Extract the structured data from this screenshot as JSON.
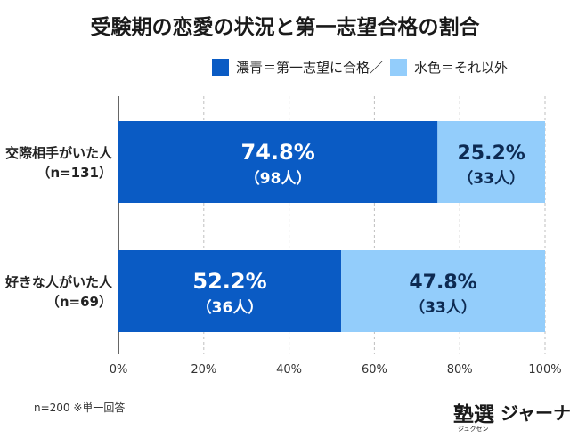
{
  "chart_data": {
    "type": "bar",
    "orientation": "horizontal",
    "stacked": true,
    "title": "受験期の恋愛の状況と第一志望合格の割合",
    "legend": {
      "text": "濃青＝第一志望に合格／ 水色＝それ以外",
      "dark_label": "濃青＝第一志望に合格／",
      "light_label": "水色＝それ以外",
      "placement": "top-right"
    },
    "categories": [
      {
        "line1": "交際相手がいた人",
        "line2": "（n=131）"
      },
      {
        "line1": "好きな人がいた人",
        "line2": "（n=69）"
      }
    ],
    "series": [
      {
        "name": "濃青＝第一志望に合格",
        "color": "#0a5bc4",
        "values": [
          74.8,
          52.2
        ],
        "labels": [
          "74.8%",
          "52.2%"
        ],
        "counts": [
          "（98人）",
          "（36人）"
        ]
      },
      {
        "name": "水色＝それ以外",
        "color": "#93cdfb",
        "values": [
          25.2,
          47.8
        ],
        "labels": [
          "25.2%",
          "47.8%"
        ],
        "counts": [
          "（33人）",
          "（33人）"
        ]
      }
    ],
    "xlim": [
      0,
      100
    ],
    "xticks": [
      "0%",
      "20%",
      "40%",
      "60%",
      "80%",
      "100%"
    ],
    "grid": true
  },
  "note": "n=200 ※単一回答",
  "logo": {
    "main": "塾選",
    "sub": "ジャーナル",
    "kana": "ジュクセン"
  }
}
